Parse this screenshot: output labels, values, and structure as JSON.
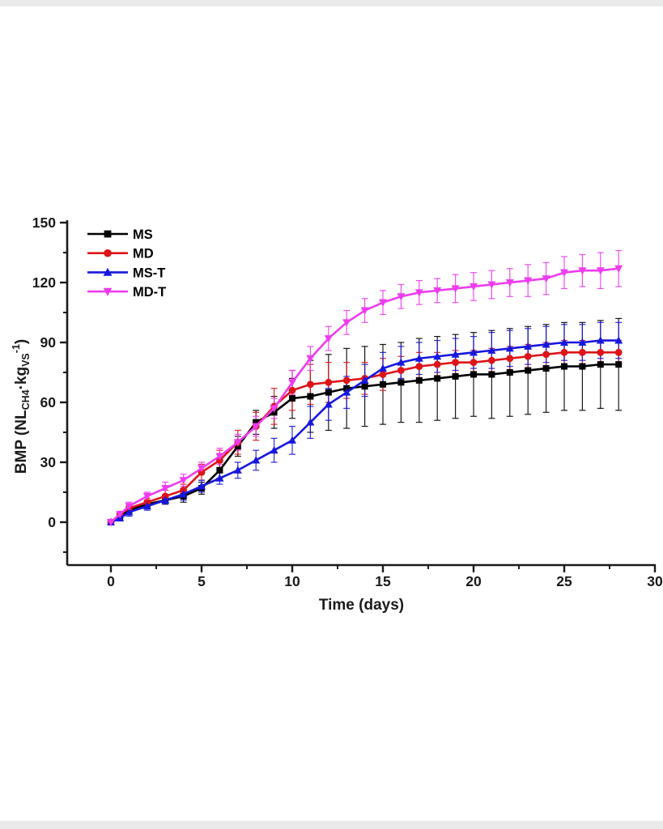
{
  "page": {
    "background": "#ffffff",
    "edge_strip_color": "#eaeaea"
  },
  "chart_data": {
    "type": "line",
    "title": "",
    "xlabel": "Time (days)",
    "ylabel": "BMP (NL_CH4·kg_VS^-1)",
    "ylabel_parts": [
      {
        "text": "BMP (NL",
        "style": "normal"
      },
      {
        "text": "CH4",
        "style": "sub"
      },
      {
        "text": "·kg",
        "style": "normal"
      },
      {
        "text": "VS",
        "style": "sub"
      },
      {
        "text": "-1",
        "style": "sup"
      },
      {
        "text": ")",
        "style": "normal"
      }
    ],
    "x": [
      0,
      0.5,
      1,
      2,
      3,
      4,
      5,
      6,
      7,
      8,
      9,
      10,
      11,
      12,
      13,
      14,
      15,
      16,
      17,
      18,
      19,
      20,
      21,
      22,
      23,
      24,
      25,
      26,
      27,
      28
    ],
    "series": [
      {
        "name": "MS",
        "color": "#000000",
        "marker": "square",
        "values": [
          0,
          3,
          6,
          9,
          11,
          13,
          17,
          26,
          38,
          50,
          55,
          62,
          63,
          65,
          67,
          68,
          69,
          70,
          71,
          72,
          73,
          74,
          74,
          75,
          76,
          77,
          78,
          78,
          79,
          79
        ],
        "errors": [
          1,
          1,
          2,
          2,
          2,
          3,
          3,
          4,
          5,
          6,
          8,
          10,
          18,
          19,
          20,
          20,
          20,
          20,
          21,
          21,
          21,
          21,
          22,
          22,
          22,
          22,
          22,
          22,
          22,
          23
        ]
      },
      {
        "name": "MD",
        "color": "#dd1418",
        "marker": "circle",
        "values": [
          0,
          4,
          7,
          10,
          13,
          16,
          25,
          31,
          40,
          48,
          58,
          66,
          69,
          70,
          71,
          72,
          74,
          76,
          78,
          79,
          80,
          80,
          81,
          82,
          83,
          84,
          85,
          85,
          85,
          85
        ],
        "errors": [
          1,
          1,
          2,
          2,
          3,
          3,
          4,
          5,
          6,
          7,
          9,
          10,
          10,
          10,
          9,
          8,
          8,
          7,
          7,
          6,
          6,
          6,
          6,
          6,
          6,
          6,
          6,
          6,
          6,
          6
        ]
      },
      {
        "name": "MS-T",
        "color": "#1717dd",
        "marker": "triangle-up",
        "values": [
          0,
          2,
          5,
          8,
          11,
          14,
          18,
          22,
          26,
          31,
          36,
          41,
          50,
          59,
          65,
          71,
          77,
          80,
          82,
          83,
          84,
          85,
          86,
          87,
          88,
          89,
          90,
          90,
          91,
          91
        ],
        "errors": [
          1,
          1,
          2,
          2,
          2,
          3,
          3,
          3,
          4,
          5,
          6,
          7,
          8,
          8,
          8,
          8,
          8,
          8,
          8,
          8,
          8,
          8,
          9,
          9,
          9,
          9,
          9,
          9,
          9,
          9
        ]
      },
      {
        "name": "MD-T",
        "color": "#ee3cee",
        "marker": "triangle-down",
        "values": [
          0,
          4,
          8,
          13,
          17,
          21,
          27,
          33,
          40,
          48,
          57,
          70,
          82,
          92,
          100,
          106,
          110,
          113,
          115,
          116,
          117,
          118,
          119,
          120,
          121,
          122,
          125,
          126,
          126,
          127
        ],
        "errors": [
          1,
          1,
          2,
          2,
          3,
          3,
          3,
          4,
          4,
          5,
          5,
          6,
          6,
          6,
          6,
          6,
          6,
          6,
          6,
          6,
          7,
          7,
          7,
          7,
          8,
          8,
          8,
          8,
          9,
          9
        ]
      }
    ],
    "xticks": {
      "major": [
        0,
        5,
        10,
        15,
        20,
        25,
        30
      ],
      "minor": [
        2.5,
        7.5,
        12.5,
        17.5,
        22.5,
        27.5
      ]
    },
    "yticks": {
      "major": [
        0,
        30,
        60,
        90,
        120,
        150
      ],
      "minor": [
        -15,
        15,
        45,
        75,
        105,
        135
      ]
    },
    "xtick_labels": [
      "0",
      "5",
      "10",
      "15",
      "20",
      "25",
      "30"
    ],
    "ytick_labels": [
      "0",
      "30",
      "60",
      "90",
      "120",
      "150"
    ],
    "xlim": [
      -2.4,
      30.1
    ],
    "ylim": [
      -21.5,
      151
    ],
    "grid": false,
    "legend_position": "upper-left",
    "legend_entries": [
      "MS",
      "MD",
      "MS-T",
      "MD-T"
    ],
    "axis_color": "#1a1a1a"
  }
}
